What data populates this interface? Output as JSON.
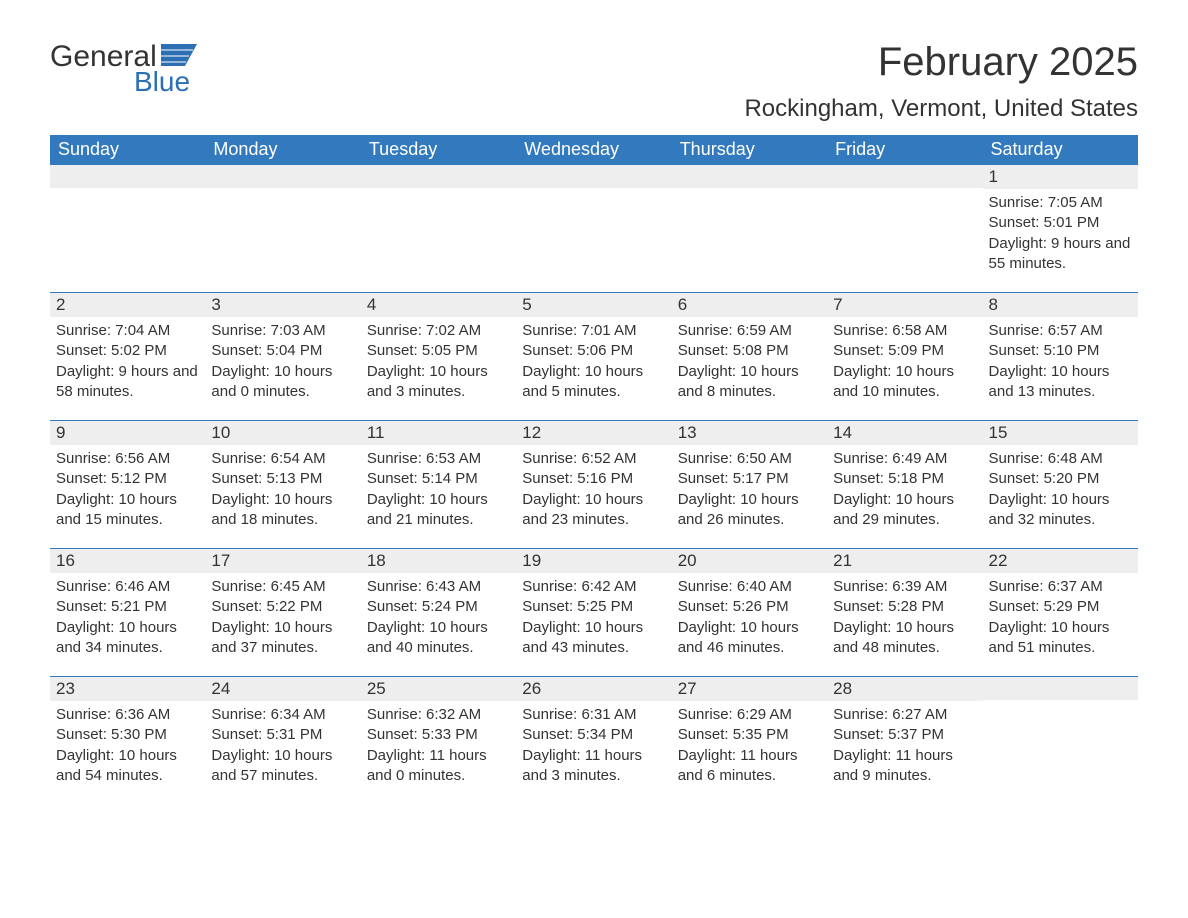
{
  "logo": {
    "text_general": "General",
    "text_blue": "Blue"
  },
  "title": "February 2025",
  "location": "Rockingham, Vermont, United States",
  "colors": {
    "header_bg": "#3279bd",
    "header_text": "#ffffff",
    "daynum_bg": "#eeeeee",
    "border_top": "#3279bd",
    "body_text": "#333333",
    "logo_blue": "#2c6fb5",
    "page_bg": "#ffffff"
  },
  "weekdays": [
    "Sunday",
    "Monday",
    "Tuesday",
    "Wednesday",
    "Thursday",
    "Friday",
    "Saturday"
  ],
  "labels": {
    "sunrise": "Sunrise",
    "sunset": "Sunset",
    "daylight": "Daylight"
  },
  "weeks": [
    [
      null,
      null,
      null,
      null,
      null,
      null,
      {
        "day": "1",
        "sunrise": "7:05 AM",
        "sunset": "5:01 PM",
        "daylight": "9 hours and 55 minutes."
      }
    ],
    [
      {
        "day": "2",
        "sunrise": "7:04 AM",
        "sunset": "5:02 PM",
        "daylight": "9 hours and 58 minutes."
      },
      {
        "day": "3",
        "sunrise": "7:03 AM",
        "sunset": "5:04 PM",
        "daylight": "10 hours and 0 minutes."
      },
      {
        "day": "4",
        "sunrise": "7:02 AM",
        "sunset": "5:05 PM",
        "daylight": "10 hours and 3 minutes."
      },
      {
        "day": "5",
        "sunrise": "7:01 AM",
        "sunset": "5:06 PM",
        "daylight": "10 hours and 5 minutes."
      },
      {
        "day": "6",
        "sunrise": "6:59 AM",
        "sunset": "5:08 PM",
        "daylight": "10 hours and 8 minutes."
      },
      {
        "day": "7",
        "sunrise": "6:58 AM",
        "sunset": "5:09 PM",
        "daylight": "10 hours and 10 minutes."
      },
      {
        "day": "8",
        "sunrise": "6:57 AM",
        "sunset": "5:10 PM",
        "daylight": "10 hours and 13 minutes."
      }
    ],
    [
      {
        "day": "9",
        "sunrise": "6:56 AM",
        "sunset": "5:12 PM",
        "daylight": "10 hours and 15 minutes."
      },
      {
        "day": "10",
        "sunrise": "6:54 AM",
        "sunset": "5:13 PM",
        "daylight": "10 hours and 18 minutes."
      },
      {
        "day": "11",
        "sunrise": "6:53 AM",
        "sunset": "5:14 PM",
        "daylight": "10 hours and 21 minutes."
      },
      {
        "day": "12",
        "sunrise": "6:52 AM",
        "sunset": "5:16 PM",
        "daylight": "10 hours and 23 minutes."
      },
      {
        "day": "13",
        "sunrise": "6:50 AM",
        "sunset": "5:17 PM",
        "daylight": "10 hours and 26 minutes."
      },
      {
        "day": "14",
        "sunrise": "6:49 AM",
        "sunset": "5:18 PM",
        "daylight": "10 hours and 29 minutes."
      },
      {
        "day": "15",
        "sunrise": "6:48 AM",
        "sunset": "5:20 PM",
        "daylight": "10 hours and 32 minutes."
      }
    ],
    [
      {
        "day": "16",
        "sunrise": "6:46 AM",
        "sunset": "5:21 PM",
        "daylight": "10 hours and 34 minutes."
      },
      {
        "day": "17",
        "sunrise": "6:45 AM",
        "sunset": "5:22 PM",
        "daylight": "10 hours and 37 minutes."
      },
      {
        "day": "18",
        "sunrise": "6:43 AM",
        "sunset": "5:24 PM",
        "daylight": "10 hours and 40 minutes."
      },
      {
        "day": "19",
        "sunrise": "6:42 AM",
        "sunset": "5:25 PM",
        "daylight": "10 hours and 43 minutes."
      },
      {
        "day": "20",
        "sunrise": "6:40 AM",
        "sunset": "5:26 PM",
        "daylight": "10 hours and 46 minutes."
      },
      {
        "day": "21",
        "sunrise": "6:39 AM",
        "sunset": "5:28 PM",
        "daylight": "10 hours and 48 minutes."
      },
      {
        "day": "22",
        "sunrise": "6:37 AM",
        "sunset": "5:29 PM",
        "daylight": "10 hours and 51 minutes."
      }
    ],
    [
      {
        "day": "23",
        "sunrise": "6:36 AM",
        "sunset": "5:30 PM",
        "daylight": "10 hours and 54 minutes."
      },
      {
        "day": "24",
        "sunrise": "6:34 AM",
        "sunset": "5:31 PM",
        "daylight": "10 hours and 57 minutes."
      },
      {
        "day": "25",
        "sunrise": "6:32 AM",
        "sunset": "5:33 PM",
        "daylight": "11 hours and 0 minutes."
      },
      {
        "day": "26",
        "sunrise": "6:31 AM",
        "sunset": "5:34 PM",
        "daylight": "11 hours and 3 minutes."
      },
      {
        "day": "27",
        "sunrise": "6:29 AM",
        "sunset": "5:35 PM",
        "daylight": "11 hours and 6 minutes."
      },
      {
        "day": "28",
        "sunrise": "6:27 AM",
        "sunset": "5:37 PM",
        "daylight": "11 hours and 9 minutes."
      },
      null
    ]
  ]
}
